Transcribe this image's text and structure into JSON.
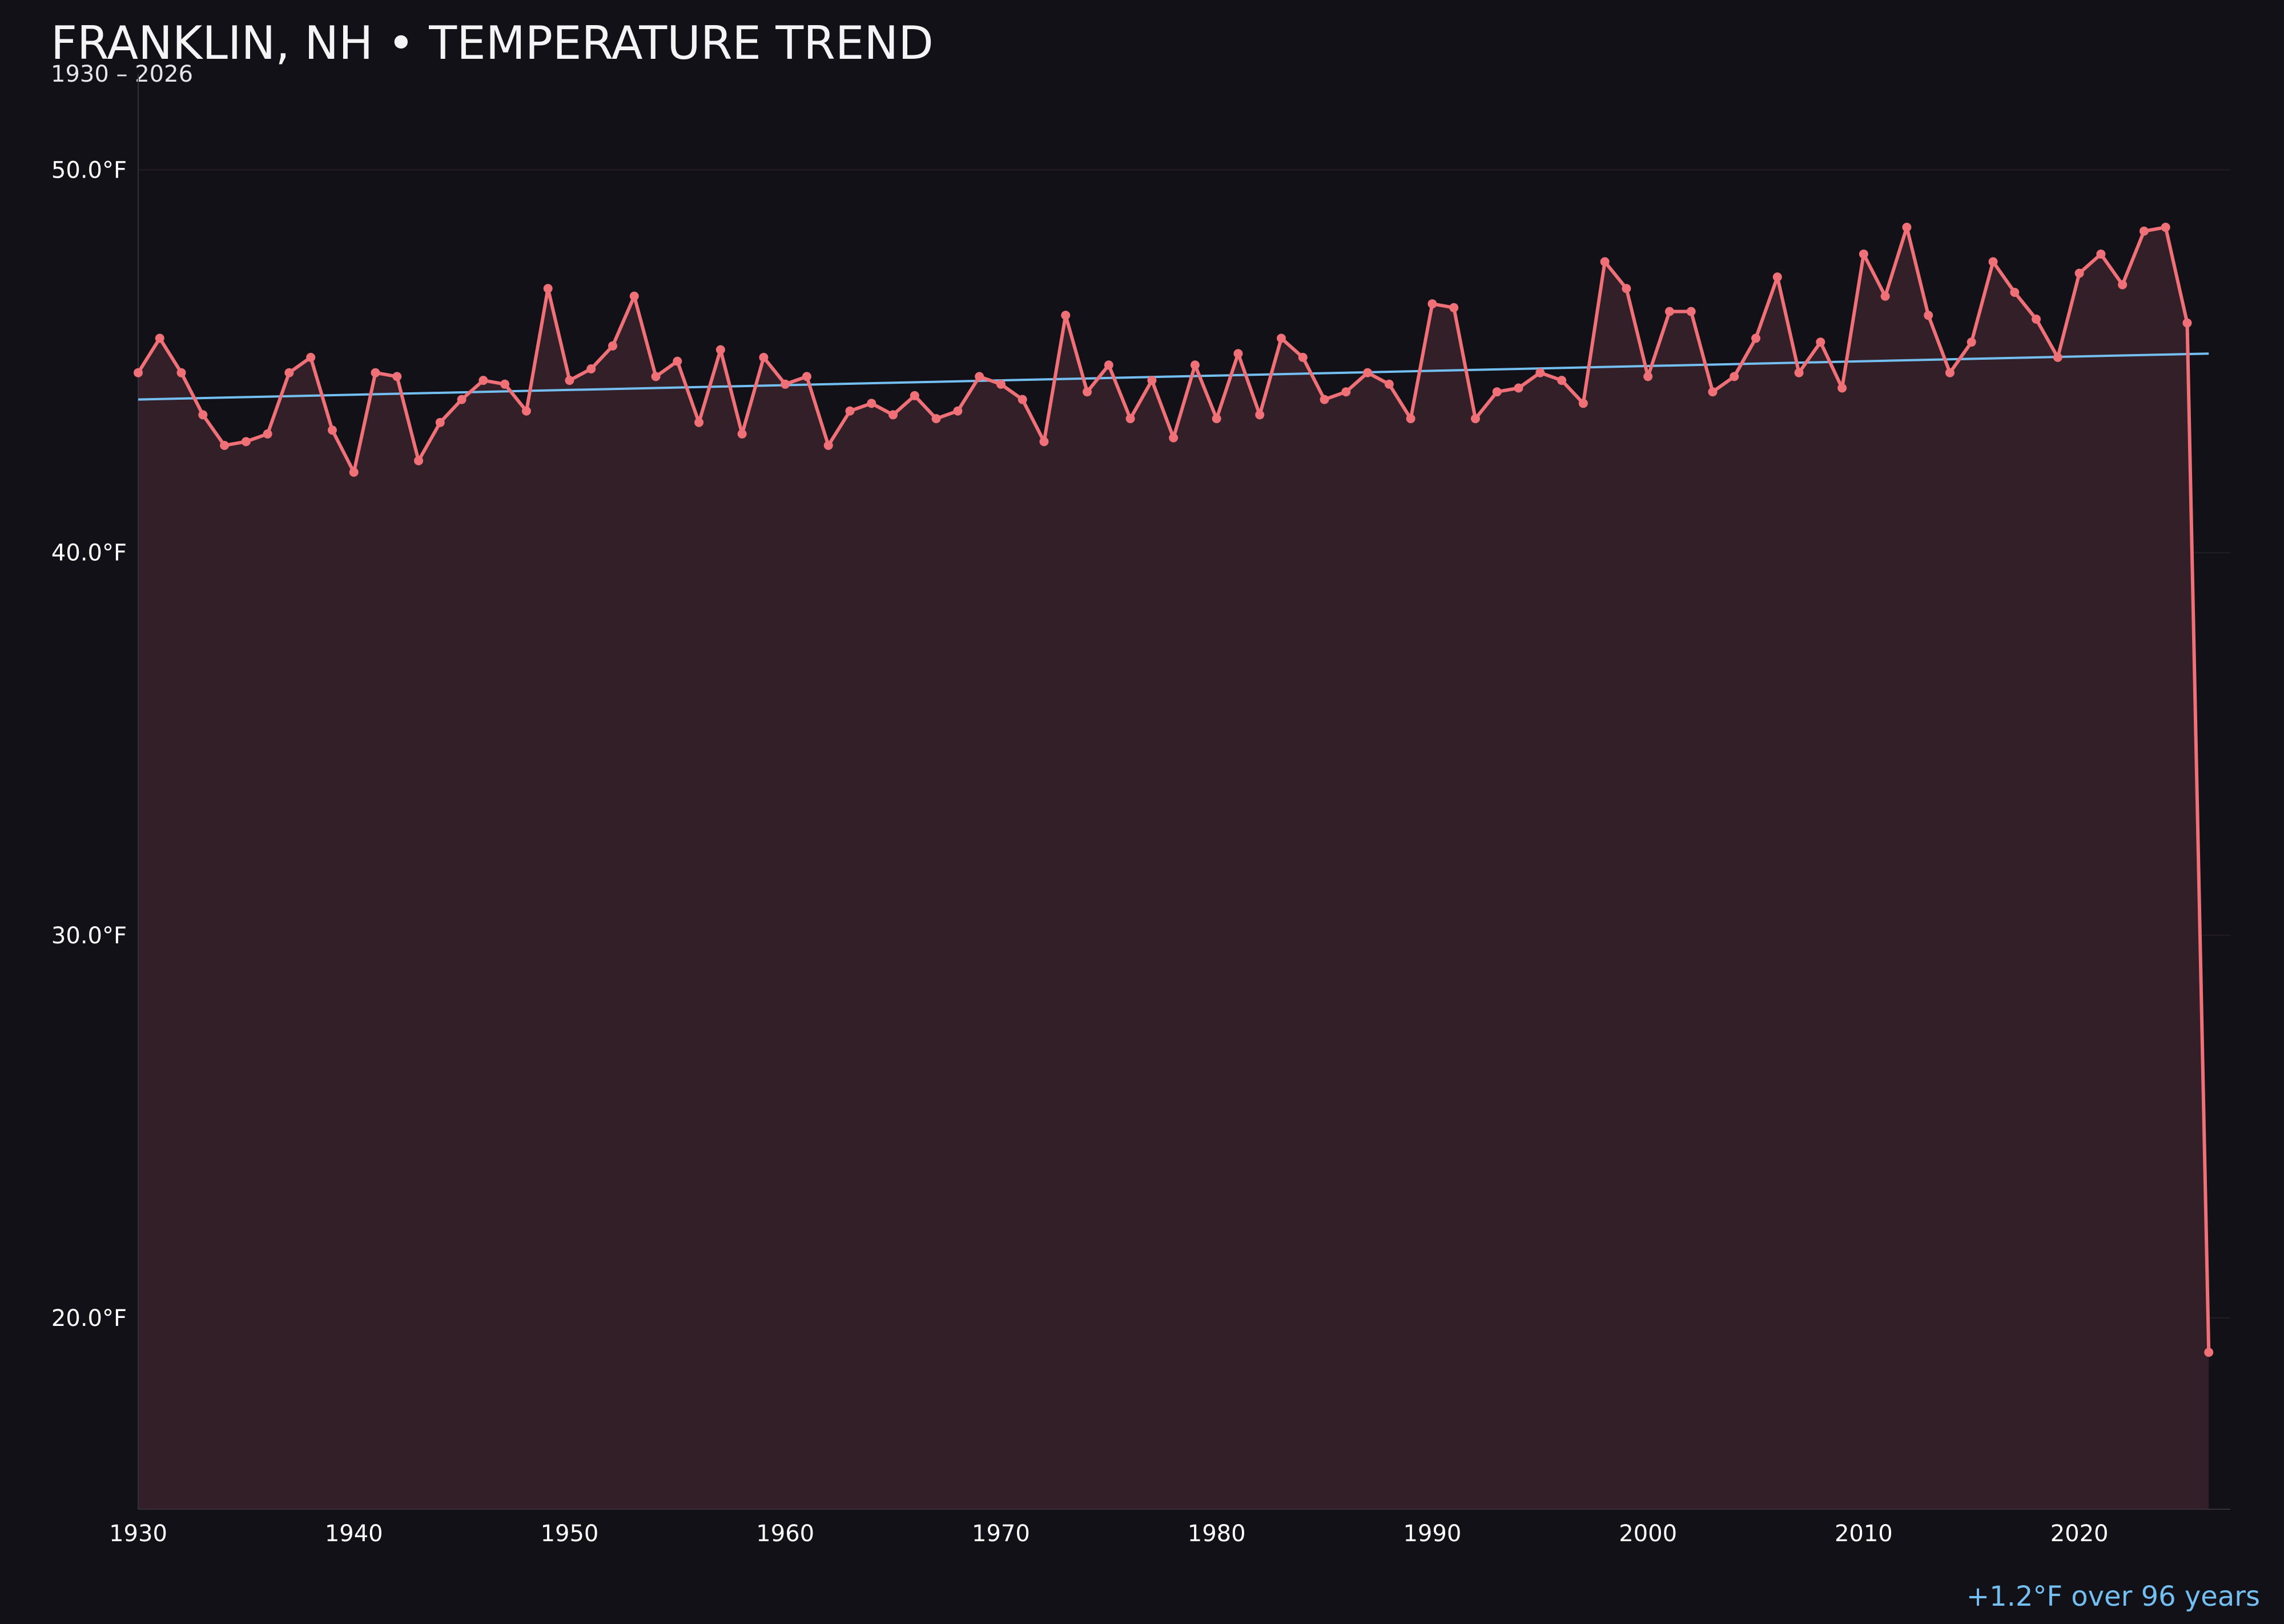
{
  "colors": {
    "background": "#121118",
    "series": "#f07078",
    "trend": "#74bff2",
    "fill": "#331f27",
    "grid": "#221c24",
    "axis": "#33303a"
  },
  "chart_data": {
    "type": "line",
    "title": "FRANKLIN, NH • TEMPERATURE TREND",
    "subtitle": "1930 – 2026",
    "xlabel": "",
    "ylabel": "",
    "xlim": [
      1930,
      2027
    ],
    "ylim": [
      15,
      52.5
    ],
    "x_ticks": [
      1930,
      1940,
      1950,
      1960,
      1970,
      1980,
      1990,
      2000,
      2010,
      2020
    ],
    "y_ticks": [
      20,
      30,
      40,
      50
    ],
    "y_tick_labels": [
      "20.0°F",
      "30.0°F",
      "40.0°F",
      "50.0°F"
    ],
    "grid": "horizontal",
    "series": [
      {
        "role": "annual-mean",
        "x": [
          1930,
          1931,
          1932,
          1933,
          1934,
          1935,
          1936,
          1937,
          1938,
          1939,
          1940,
          1941,
          1942,
          1943,
          1944,
          1945,
          1946,
          1947,
          1948,
          1949,
          1950,
          1951,
          1952,
          1953,
          1954,
          1955,
          1956,
          1957,
          1958,
          1959,
          1960,
          1961,
          1962,
          1963,
          1964,
          1965,
          1966,
          1967,
          1968,
          1969,
          1970,
          1971,
          1972,
          1973,
          1974,
          1975,
          1976,
          1977,
          1978,
          1979,
          1980,
          1981,
          1982,
          1983,
          1984,
          1985,
          1986,
          1987,
          1988,
          1989,
          1990,
          1991,
          1992,
          1993,
          1994,
          1995,
          1996,
          1997,
          1998,
          1999,
          2000,
          2001,
          2002,
          2003,
          2004,
          2005,
          2006,
          2007,
          2008,
          2009,
          2010,
          2011,
          2012,
          2013,
          2014,
          2015,
          2016,
          2017,
          2018,
          2019,
          2020,
          2021,
          2022,
          2023,
          2024,
          2025,
          2026
        ],
        "y": [
          44.7,
          45.6,
          44.7,
          43.6,
          42.8,
          42.9,
          43.1,
          44.7,
          45.1,
          43.2,
          42.1,
          44.7,
          44.6,
          42.4,
          43.4,
          44.0,
          44.5,
          44.4,
          43.7,
          46.9,
          44.5,
          44.8,
          45.4,
          46.7,
          44.6,
          45.0,
          43.4,
          45.3,
          43.1,
          45.1,
          44.4,
          44.6,
          42.8,
          43.7,
          43.9,
          43.6,
          44.1,
          43.5,
          43.7,
          44.6,
          44.4,
          44.0,
          42.9,
          46.2,
          44.2,
          44.9,
          43.5,
          44.5,
          43.0,
          44.9,
          43.5,
          45.2,
          43.6,
          45.6,
          45.1,
          44.0,
          44.2,
          44.7,
          44.4,
          43.5,
          46.5,
          46.4,
          43.5,
          44.2,
          44.3,
          44.7,
          44.5,
          43.9,
          47.6,
          46.9,
          44.6,
          46.3,
          46.3,
          44.2,
          44.6,
          45.6,
          47.2,
          44.7,
          45.5,
          44.3,
          47.8,
          46.7,
          48.5,
          46.2,
          44.7,
          45.5,
          47.6,
          46.8,
          46.1,
          45.1,
          47.3,
          47.8,
          47.0,
          48.4,
          48.5,
          46.0,
          19.1
        ]
      },
      {
        "role": "linear-trend",
        "x": [
          1930,
          2026
        ],
        "y": [
          44.0,
          45.2
        ]
      }
    ]
  },
  "footer": {
    "trend_summary": "+1.2°F over 96 years"
  }
}
